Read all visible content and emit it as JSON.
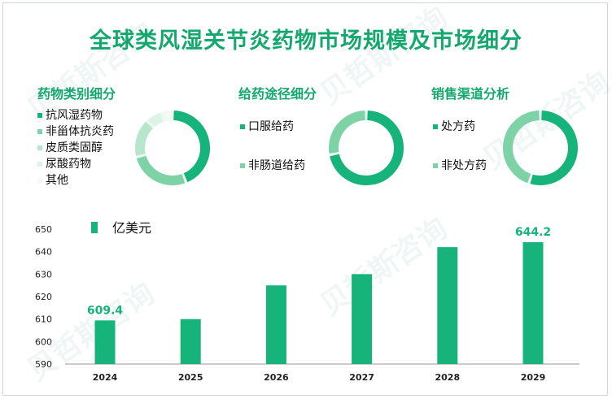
{
  "title": "全球类风湿关节炎药物市场规模及市场细分",
  "watermark": "贝哲斯咨询",
  "colors": {
    "primary": "#16b47a",
    "second": "#7dd3a6",
    "third": "#b6e6cc",
    "fourth": "#dff2e8",
    "fifth": "#f2faf6",
    "track": "#eef6f2"
  },
  "sections": [
    {
      "title": "药物类别细分",
      "legend": [
        "抗风湿药物",
        "非甾体抗炎药",
        "皮质类固醇",
        "尿酸药物",
        "其他"
      ],
      "slices": [
        0.44,
        0.27,
        0.17,
        0.07,
        0.05
      ]
    },
    {
      "title": "给药途径细分",
      "legend": [
        "口服给药",
        "非肠道给药"
      ],
      "slices": [
        0.72,
        0.28
      ]
    },
    {
      "title": "销售渠道分析",
      "legend": [
        "处方药",
        "非处方药"
      ],
      "slices": [
        0.55,
        0.45
      ]
    }
  ],
  "chart_data": {
    "type": "bar",
    "legend": "亿美元",
    "categories": [
      "2024",
      "2025",
      "2026",
      "2027",
      "2028",
      "2029"
    ],
    "values": [
      609.4,
      610,
      625,
      630,
      642,
      644.2
    ],
    "data_labels": [
      "609.4",
      "",
      "",
      "",
      "",
      "644.2"
    ],
    "ylim": [
      590,
      650
    ],
    "yticks": [
      "590",
      "600",
      "610",
      "620",
      "630",
      "640",
      "650"
    ],
    "grid": false
  }
}
